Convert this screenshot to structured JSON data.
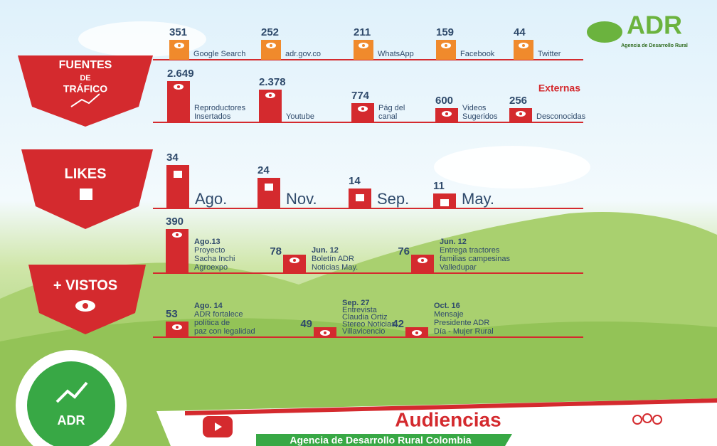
{
  "logo": {
    "title": "ADR",
    "subtitle": "Agencia de Desarrollo Rural"
  },
  "fuentes": {
    "label": [
      "FUENTES",
      "DE",
      "TRÁFICO"
    ],
    "externas": {
      "label": "Externas",
      "items": [
        {
          "value": 351,
          "label": "Google Search"
        },
        {
          "value": 252,
          "label": "adr.gov.co"
        },
        {
          "value": 211,
          "label": "WhatsApp"
        },
        {
          "value": 159,
          "label": "Facebook"
        },
        {
          "value": 44,
          "label": "Twitter"
        }
      ]
    },
    "internas": {
      "items": [
        {
          "value": "2.649",
          "label": [
            "Reproductores",
            "Insertados"
          ]
        },
        {
          "value": "2.378",
          "label": [
            "Youtube"
          ]
        },
        {
          "value": 774,
          "label": [
            "Pág del",
            "canal"
          ]
        },
        {
          "value": 600,
          "label": [
            "Videos",
            "Sugeridos"
          ]
        },
        {
          "value": 256,
          "label": [
            "Desconocidas"
          ]
        }
      ]
    }
  },
  "likes": {
    "label": "LIKES",
    "items": [
      {
        "value": 34,
        "label": "Ago."
      },
      {
        "value": 24,
        "label": "Nov."
      },
      {
        "value": 14,
        "label": "Sep."
      },
      {
        "value": 11,
        "label": "May."
      }
    ]
  },
  "vistos": {
    "label": "+ VISTOS",
    "rows": [
      [
        {
          "value": 390,
          "date": "Ago.13",
          "lines": [
            "Proyecto",
            "Sacha Inchi",
            "Agroexpo"
          ]
        },
        {
          "value": 78,
          "date": "Jun. 12",
          "lines": [
            "Boletín ADR",
            "Noticias May."
          ]
        },
        {
          "value": 76,
          "date": "Jun. 12",
          "lines": [
            "Entrega tractores",
            "familias campesinas",
            "Valledupar"
          ]
        }
      ],
      [
        {
          "value": 53,
          "date": "Ago. 14",
          "lines": [
            "ADR fortalece",
            "política de",
            "paz con legalidad"
          ]
        },
        {
          "value": 49,
          "date": "Sep. 27",
          "lines": [
            "Entrevista",
            "Claudia Ortiz",
            "Stereo Noticias",
            "Villavicencio"
          ]
        },
        {
          "value": 42,
          "date": "Oct. 16",
          "lines": [
            "Mensaje",
            "Presidente ADR",
            "Día - Mujer Rural"
          ]
        }
      ]
    ]
  },
  "footer": {
    "badge": "ADR",
    "title": "Audiencias",
    "subtitle": "Agencia de Desarrollo Rural Colombia"
  }
}
